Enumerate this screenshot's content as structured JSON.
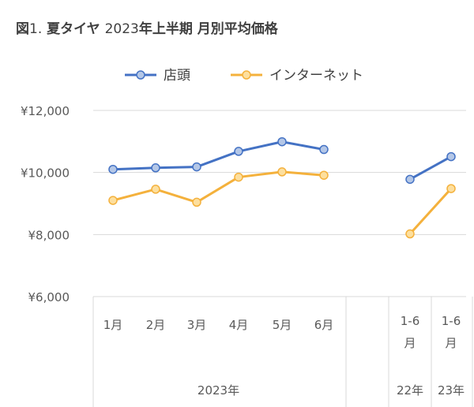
{
  "title": {
    "prefix": "図",
    "number": "1.",
    "text_bold_1": "夏タイヤ",
    "text_light": "2023",
    "text_bold_2": "年上半期 月別平均価格"
  },
  "chart_data": {
    "type": "line",
    "categories": [
      "1月",
      "2月",
      "3月",
      "4月",
      "5月",
      "6月",
      "",
      "1-6月",
      "1-6月"
    ],
    "groups": [
      {
        "label": "2023年",
        "span": [
          0,
          6
        ]
      },
      {
        "label": "",
        "span": [
          6,
          7
        ]
      },
      {
        "label": "22年",
        "span": [
          7,
          8
        ]
      },
      {
        "label": "23年",
        "span": [
          8,
          9
        ]
      }
    ],
    "yticks": [
      "¥6,000",
      "¥8,000",
      "¥10,000",
      "¥12,000"
    ],
    "ylim": [
      6000,
      12000
    ],
    "grid": true,
    "legend_position": "top",
    "series": [
      {
        "name": "店頭",
        "color": "#4472C4",
        "marker_fill": "#B4C7E7",
        "values": [
          10100,
          10150,
          10180,
          10680,
          10990,
          10740,
          null,
          9780,
          10510
        ]
      },
      {
        "name": "インターネット",
        "color": "#F4B13C",
        "marker_fill": "#FDDF9E",
        "values": [
          9100,
          9460,
          9040,
          9850,
          10020,
          9910,
          null,
          8020,
          9480
        ]
      }
    ]
  }
}
